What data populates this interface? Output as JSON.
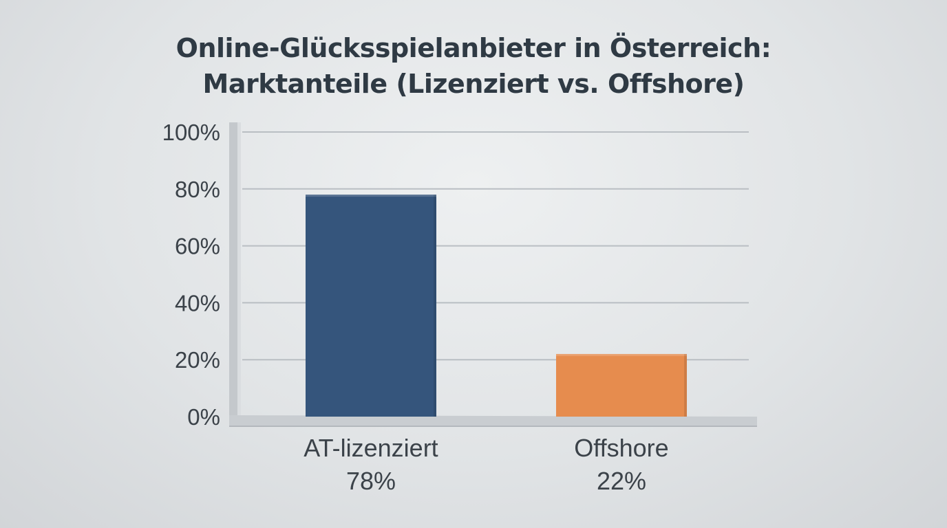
{
  "chart_data": {
    "type": "bar",
    "title": "Online-Glücksspielanbieter in Österreich: Marktanteile (Lizenziert vs. Offshore)",
    "title_lines": [
      "Online-Glücksspielanbieter in Österreich:",
      "Marktanteile (Lizenziert vs. Offshore)"
    ],
    "categories": [
      "AT-lizenziert",
      "Offshore"
    ],
    "values": [
      78,
      22
    ],
    "data_labels": [
      "78%",
      "22%"
    ],
    "colors": [
      "#35557c",
      "#e68c4e"
    ],
    "xlabel": "",
    "ylabel": "",
    "ylim": [
      0,
      100
    ],
    "yticks": [
      0,
      20,
      40,
      60,
      80,
      100
    ],
    "ytick_labels": [
      "0%",
      "20%",
      "40%",
      "60%",
      "80%",
      "100%"
    ],
    "grid": true,
    "legend": "none"
  }
}
